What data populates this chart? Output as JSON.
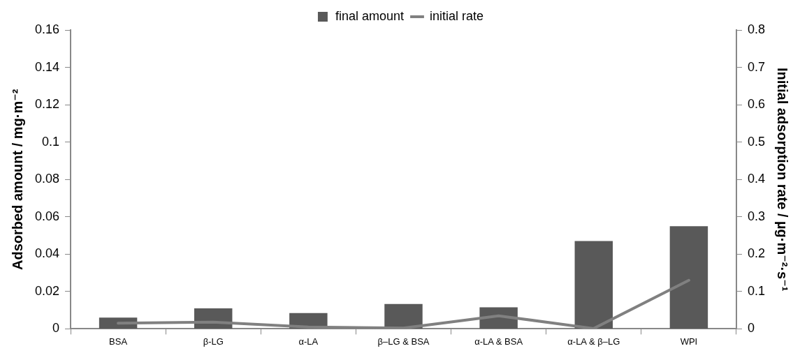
{
  "chart_data": {
    "type": "bar",
    "categories": [
      "BSA",
      "β-LG",
      "α-LA",
      "β–LG & BSA",
      "α-LA & BSA",
      "α-LA & β–LG",
      "WPI"
    ],
    "series": [
      {
        "name": "final amount",
        "color": "#595959",
        "values": [
          0.006,
          0.011,
          0.0085,
          0.0133,
          0.0115,
          0.047,
          0.055
        ]
      },
      {
        "name": "initial rate",
        "type": "line",
        "axis": "y2",
        "color": "#808080",
        "values": [
          0.015,
          0.018,
          0.005,
          0.002,
          0.035,
          0.001,
          0.13
        ]
      }
    ],
    "ylabel": "Adsorbed amount / mg·m⁻²",
    "y2label": "Initial adsorption rate / µg·m⁻²·s⁻¹",
    "ylim": [
      0,
      0.16
    ],
    "yticks": [
      0,
      0.02,
      0.04,
      0.06,
      0.08,
      0.1,
      0.12,
      0.14,
      0.16
    ],
    "y2lim": [
      0,
      0.8
    ],
    "y2ticks": [
      0,
      0.1,
      0.2,
      0.3,
      0.4,
      0.5,
      0.6,
      0.7,
      0.8
    ],
    "legend": "top",
    "grid": false
  }
}
